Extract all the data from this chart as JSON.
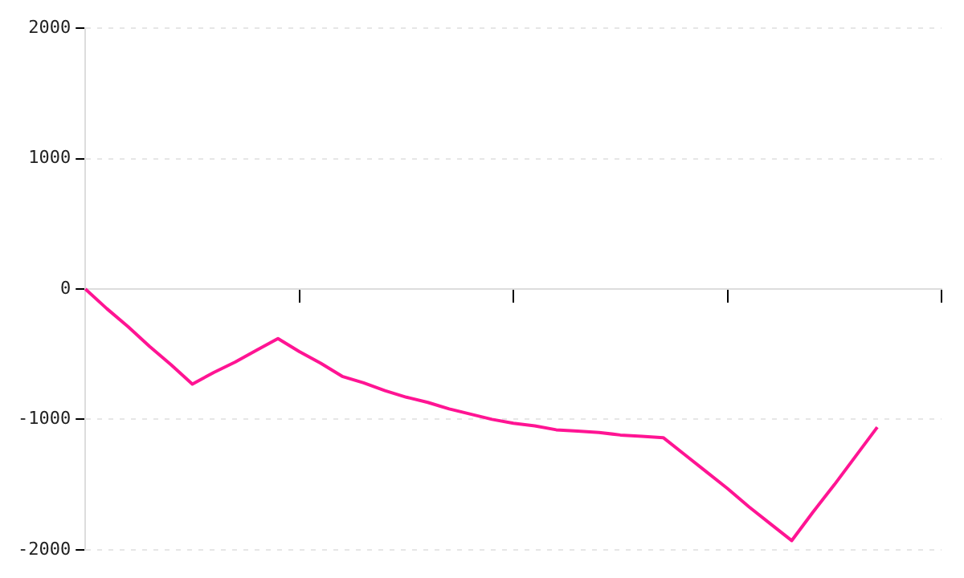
{
  "chart_data": {
    "type": "line",
    "categories": [
      null,
      null,
      null,
      null,
      null,
      null,
      null,
      null,
      null,
      null,
      null,
      null,
      null,
      null,
      null,
      null,
      null,
      null,
      null,
      null,
      null,
      null,
      null,
      null,
      null,
      null,
      null,
      null,
      null,
      null,
      null,
      null,
      null,
      null,
      null,
      null,
      null,
      null,
      null,
      null,
      null
    ],
    "series": [
      {
        "color": "#ff1493",
        "values": [
          0,
          -150,
          -290,
          -440,
          -580,
          -730,
          -640,
          -560,
          -470,
          -380,
          -480,
          -570,
          -670,
          -720,
          -780,
          -830,
          -870,
          -920,
          -960,
          -1000,
          -1030,
          -1050,
          -1080,
          -1090,
          -1100,
          -1120,
          -1130,
          -1140,
          -1270,
          -1400,
          -1530,
          -1670,
          -1800,
          -1930,
          -1710,
          -1500,
          -1280,
          -1060,
          null,
          null,
          null
        ]
      }
    ],
    "ylim": [
      -2000,
      2000
    ],
    "yticks": [
      -2000,
      -1000,
      0,
      1000,
      2000
    ],
    "grid": "y",
    "legend": false,
    "marker": "none",
    "line_style": "solid"
  }
}
